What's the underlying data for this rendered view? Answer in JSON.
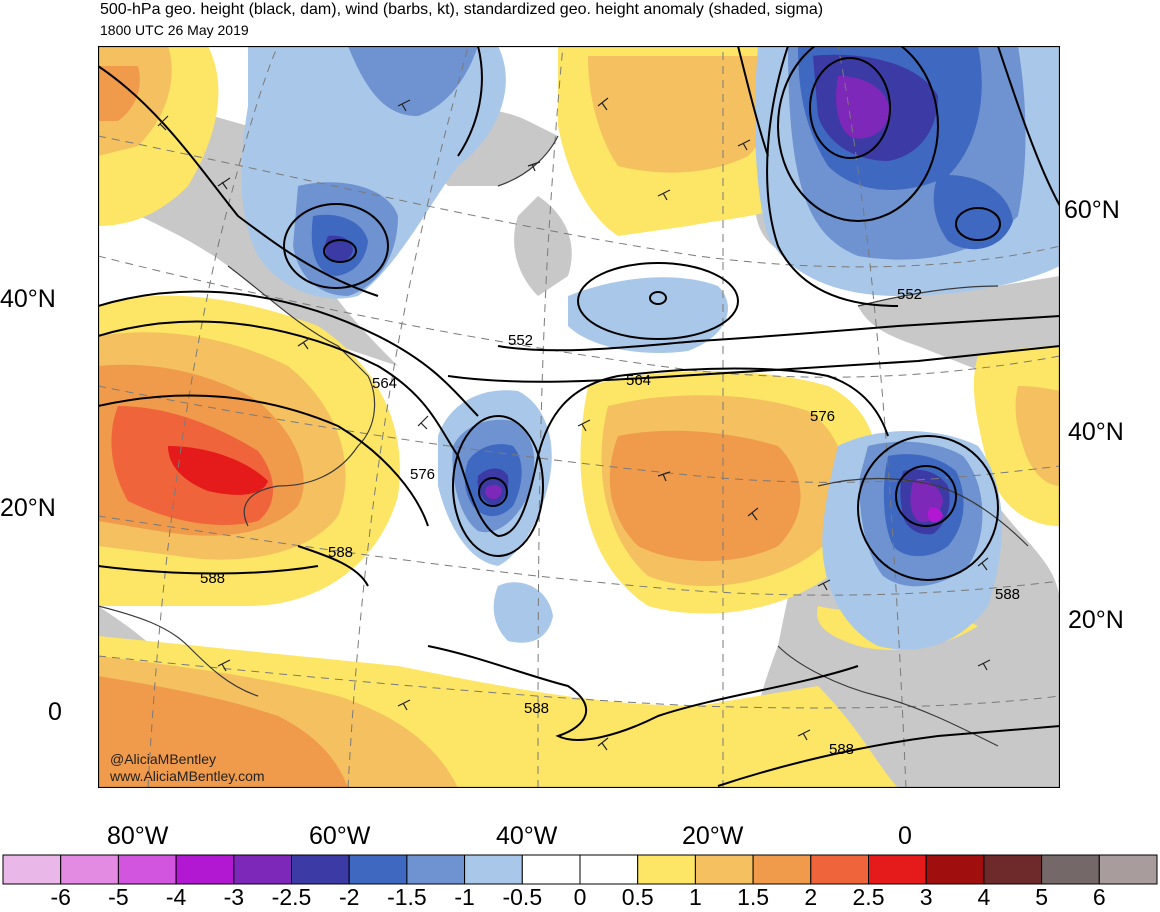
{
  "title": {
    "line1": "500-hPa geo. height (black, dam), wind (barbs, kt), standardized geo. height anomaly (shaded, sigma)",
    "line2": "1800 UTC 26 May 2019"
  },
  "attribution": {
    "handle": "@AliciaMBentley",
    "website": "www.AliciaMBentley.com"
  },
  "axes": {
    "lat_left": [
      "40°N",
      "20°N",
      "0"
    ],
    "lat_right": [
      "60°N",
      "40°N",
      "20°N"
    ],
    "lon_bottom": [
      "80°W",
      "60°W",
      "40°W",
      "20°W",
      "0"
    ]
  },
  "contour_labels": [
    "552",
    "552",
    "564",
    "564",
    "576",
    "576",
    "588",
    "588",
    "588",
    "588",
    "588"
  ],
  "colorbar": {
    "labels": [
      "-6",
      "-5",
      "-4",
      "-3",
      "-2.5",
      "-2",
      "-1.5",
      "-1",
      "-0.5",
      "0",
      "0.5",
      "1",
      "1.5",
      "2",
      "2.5",
      "3",
      "4",
      "5",
      "6"
    ],
    "colors": [
      "#e9b8e9",
      "#e38ae3",
      "#d255e0",
      "#b217d1",
      "#7d28b8",
      "#3c3aa4",
      "#3f68c0",
      "#6f93d0",
      "#a9c7e8",
      "#ffffff",
      "#ffffff",
      "#fde565",
      "#f4c060",
      "#f09a4b",
      "#f0643c",
      "#e51a1a",
      "#a00e0e",
      "#6e2a2a",
      "#746868",
      "#a89c9c"
    ]
  },
  "shading_colors": {
    "land": "#c8c8c8",
    "pos05": "#fde565",
    "pos1": "#f4c060",
    "pos15": "#f09a4b",
    "pos2": "#f0643c",
    "pos25": "#e51a1a",
    "neg05": "#a9c7e8",
    "neg1": "#6f93d0",
    "neg15": "#3f68c0",
    "neg2": "#3c3aa4",
    "neg25": "#7d28b8",
    "neg3": "#b217d1"
  }
}
